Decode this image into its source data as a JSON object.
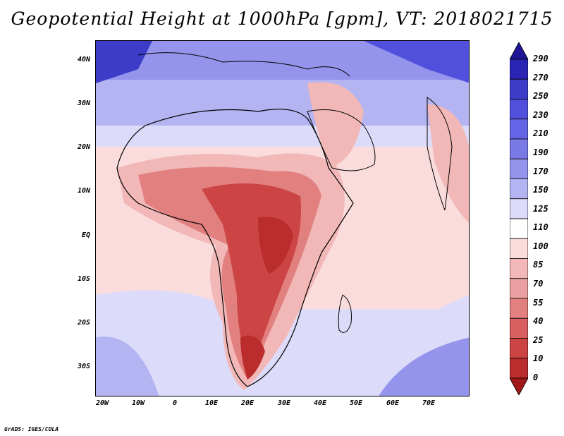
{
  "title": "Geopotential Height at 1000hPa [gpm], VT: 2018021715",
  "lat_labels": [
    "40N",
    "30N",
    "20N",
    "10N",
    "EQ",
    "10S",
    "20S",
    "30S"
  ],
  "lon_labels": [
    "20W",
    "10W",
    "0",
    "10E",
    "20E",
    "30E",
    "40E",
    "50E",
    "60E",
    "70E"
  ],
  "colorbar": {
    "levels": [
      "290",
      "270",
      "250",
      "230",
      "210",
      "190",
      "170",
      "150",
      "125",
      "110",
      "100",
      "85",
      "70",
      "55",
      "40",
      "25",
      "10",
      "0"
    ],
    "colors": [
      "#1e1496",
      "#2a24b4",
      "#3c3cc8",
      "#5050dc",
      "#6464e6",
      "#7a7ae6",
      "#9494ec",
      "#b4b4f2",
      "#dcdcfa",
      "#ffffff",
      "#fadcdc",
      "#f2b8b8",
      "#eaa0a0",
      "#e28080",
      "#d86060",
      "#cc4444",
      "#bb2c2c",
      "#a01818"
    ]
  },
  "credit": "GrADS: IGES/COLA"
}
